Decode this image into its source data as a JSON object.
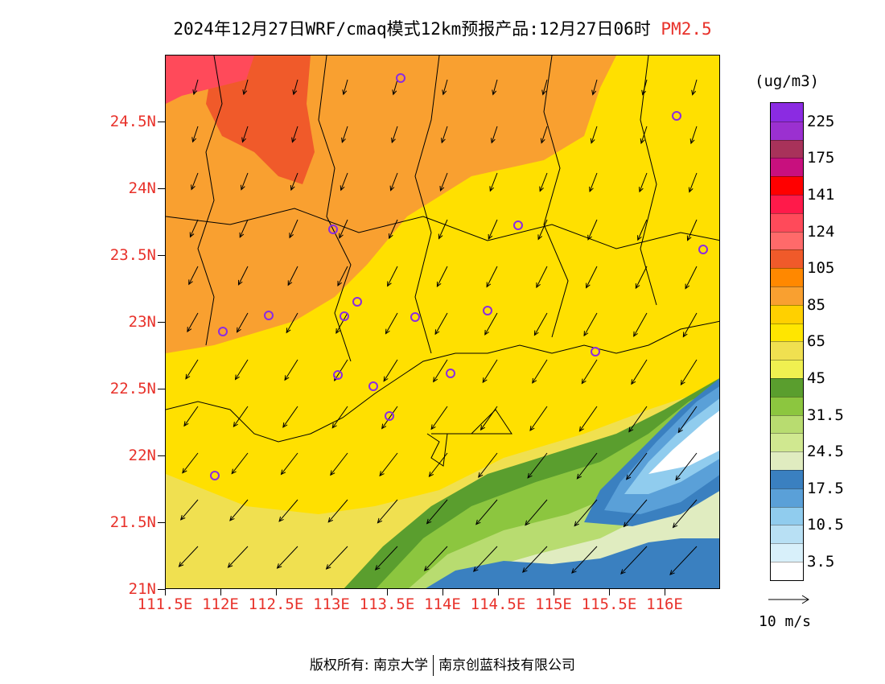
{
  "title": {
    "main": "2024年12月27日WRF/cmaq模式12km预报产品:12月27日06时",
    "variable": "PM2.5",
    "variable_color": "#e8312a"
  },
  "map": {
    "lat_labels": [
      "24.5N",
      "24N",
      "23.5N",
      "23N",
      "22.5N",
      "22N",
      "21.5N",
      "21N"
    ],
    "lon_labels": [
      "111.5E",
      "112E",
      "112.5E",
      "113E",
      "113.5E",
      "114E",
      "114.5E",
      "115E",
      "115.5E",
      "116E"
    ],
    "axis_label_color": "#e8312a",
    "lat_range": [
      21.0,
      25.0
    ],
    "lon_range": [
      111.5,
      116.5
    ]
  },
  "legend": {
    "unit": "(ug/m3)",
    "labels": [
      "225",
      "175",
      "141",
      "124",
      "105",
      "85",
      "65",
      "45",
      "31.5",
      "24.5",
      "17.5",
      "10.5",
      "3.5"
    ],
    "colors": [
      "#8b2be2",
      "#9b30d0",
      "#a8325a",
      "#c8107e",
      "#ff0000",
      "#ff1a4a",
      "#ff4a5a",
      "#ff6a6a",
      "#f05a2a",
      "#ff8800",
      "#f9a030",
      "#ffd000",
      "#ffe600",
      "#f0e050",
      "#f0f050",
      "#5a9e2e",
      "#8cc63f",
      "#b8dc70",
      "#d0e890",
      "#e0ecc0",
      "#3a80c0",
      "#5aa0d8",
      "#90ccee",
      "#b8e0f4",
      "#d8f0fa",
      "#ffffff"
    ]
  },
  "wind_reference": {
    "label": "10 m/s"
  },
  "copyright": {
    "prefix": "版权所有:",
    "org1": "南京大学",
    "org2": "南京创蓝科技有限公司"
  }
}
